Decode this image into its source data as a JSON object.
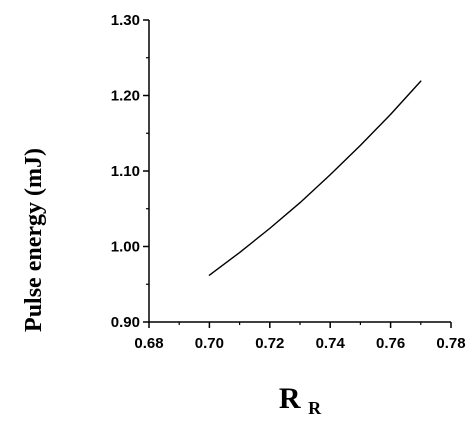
{
  "chart_data": {
    "type": "line",
    "title": "",
    "xlabel": "R",
    "xlabel_subscript": "R",
    "ylabel": "Pulse energy (mJ)",
    "xlim": [
      0.68,
      0.78
    ],
    "ylim": [
      0.9,
      1.3
    ],
    "grid": false,
    "x_ticks": [
      "0.68",
      "0.70",
      "0.72",
      "0.74",
      "0.76",
      "0.78"
    ],
    "y_ticks": [
      "0.90",
      "1.00",
      "1.10",
      "1.20",
      "1.30"
    ],
    "series": [
      {
        "x": [
          0.7,
          0.71,
          0.72,
          0.73,
          0.74,
          0.75,
          0.76,
          0.77
        ],
        "values": [
          0.962,
          0.992,
          1.024,
          1.058,
          1.095,
          1.134,
          1.175,
          1.219
        ]
      }
    ],
    "colors": {
      "line": "#000000",
      "axis": "#000000",
      "background": "#ffffff"
    }
  }
}
